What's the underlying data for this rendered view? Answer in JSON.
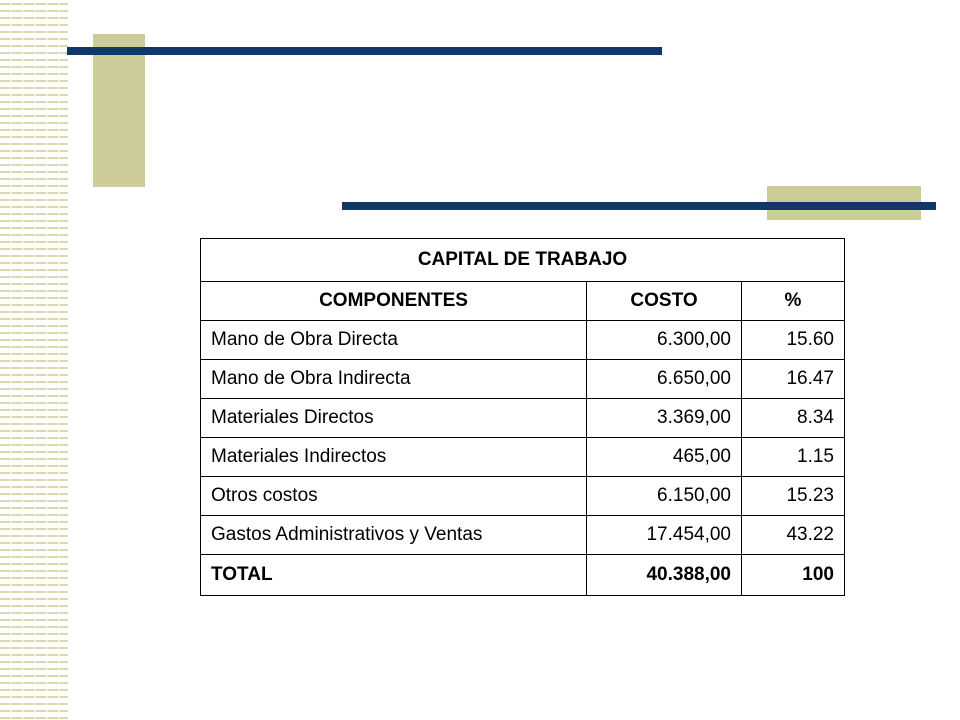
{
  "table": {
    "title": "CAPITAL DE TRABAJO",
    "headers": {
      "componentes": "COMPONENTES",
      "costo": "COSTO",
      "porcentaje": "%"
    },
    "rows": [
      {
        "componente": "Mano de Obra Directa",
        "costo": "6.300,00",
        "porcentaje": "15.60"
      },
      {
        "componente": "Mano de Obra Indirecta",
        "costo": "6.650,00",
        "porcentaje": "16.47"
      },
      {
        "componente": "Materiales Directos",
        "costo": "3.369,00",
        "porcentaje": "8.34"
      },
      {
        "componente": "Materiales Indirectos",
        "costo": "465,00",
        "porcentaje": "1.15"
      },
      {
        "componente": "Otros costos",
        "costo": "6.150,00",
        "porcentaje": "15.23"
      },
      {
        "componente": "Gastos Administrativos y Ventas",
        "costo": "17.454,00",
        "porcentaje": "43.22"
      }
    ],
    "total": {
      "label": "TOTAL",
      "costo": "40.388,00",
      "porcentaje": "100"
    }
  },
  "colors": {
    "accent_bar": "#10386a",
    "accent_block": "#cccc99",
    "stripe": "#d9d8b0"
  }
}
